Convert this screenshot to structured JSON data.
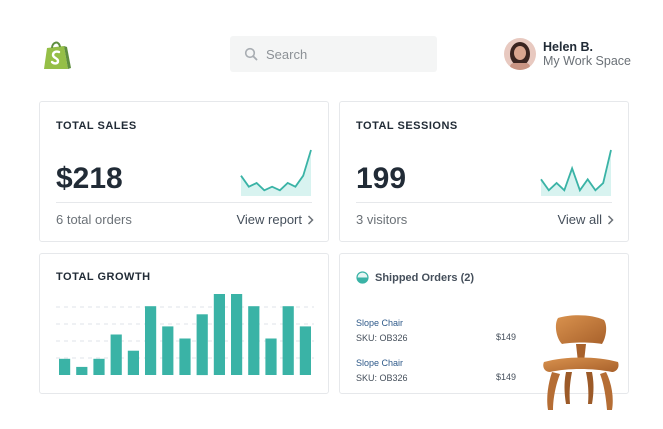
{
  "header": {
    "logo_icon": "shopify-bag-icon",
    "search": {
      "placeholder": "Search",
      "value": ""
    },
    "user": {
      "name": "Helen B.",
      "workspace": "My Work Space"
    }
  },
  "cards": {
    "sales": {
      "title": "TOTAL SALES",
      "value": "$218",
      "subtext": "6 total orders",
      "link": "View report"
    },
    "sessions": {
      "title": "TOTAL SESSIONS",
      "value": "199",
      "subtext": "3 visitors",
      "link": "View all"
    },
    "growth": {
      "title": "TOTAL GROWTH"
    },
    "shipped": {
      "title": "Shipped Orders (2)",
      "orders": [
        {
          "name": "Slope Chair",
          "sku": "SKU: OB326",
          "price": "$149"
        },
        {
          "name": "Slope Chair",
          "sku": "SKU: OB326",
          "price": "$149"
        }
      ]
    }
  },
  "colors": {
    "accent": "#3ab3a6",
    "sparkline_fill": "#d8f3f0",
    "text": "#212b36",
    "muted": "#6b7177"
  },
  "chart_data": [
    {
      "type": "line",
      "series": [
        {
          "values": [
            5,
            2,
            3,
            1,
            2,
            1,
            3,
            2,
            5,
            12
          ]
        }
      ]
    },
    {
      "type": "line",
      "series": [
        {
          "values": [
            4,
            1,
            3,
            1,
            7,
            1,
            4,
            1,
            3,
            12
          ]
        }
      ]
    },
    {
      "type": "bar",
      "values": [
        4,
        2,
        4,
        10,
        6,
        17,
        12,
        9,
        15,
        20,
        20,
        17,
        9,
        17,
        12
      ],
      "ylim": [
        0,
        20
      ],
      "grid": true
    }
  ]
}
